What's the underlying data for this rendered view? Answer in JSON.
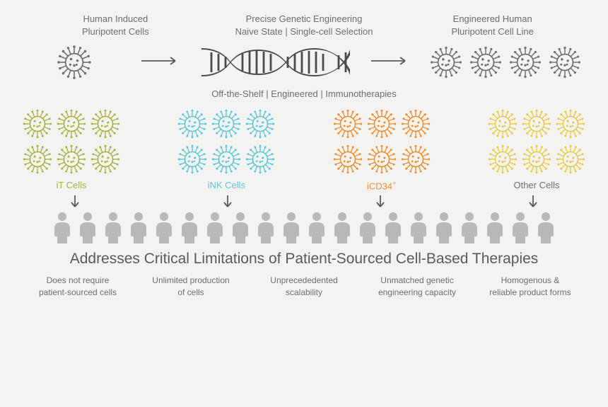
{
  "colors": {
    "text": "#6e6e6e",
    "bg": "#f3f3f2",
    "gray_icon": "#6e6e6e",
    "dna_dark": "#4a4a4a",
    "people": "#b8b8b8",
    "arrow": "#5a5a5a",
    "olive": "#a8b23a",
    "cyan": "#5cc5d8",
    "orange": "#f28c2e",
    "yellow": "#e8c843"
  },
  "top": {
    "left": {
      "line1": "Human Induced",
      "line2": "Pluripotent Cells"
    },
    "mid": {
      "line1": "Precise Genetic Engineering",
      "line2": "Naive State  |  Single-cell Selection"
    },
    "right": {
      "line1": "Engineered Human",
      "line2": "Pluripotent Cell Line"
    }
  },
  "tagline": "Off-the-Shelf  |  Engineered  |  Immunotherapies",
  "cell_types": [
    {
      "label": "iT Cells",
      "color": "#a8b23a"
    },
    {
      "label": "iNK Cells",
      "color": "#5cc5d8"
    },
    {
      "label": "iCD34",
      "sup": "+",
      "color": "#f28c2e"
    },
    {
      "label": "Other Cells",
      "color": "#e8c843",
      "label_color": "#6e6e6e"
    }
  ],
  "people_count": 20,
  "headline": "Addresses Critical Limitations of Patient-Sourced Cell-Based Therapies",
  "benefits": [
    {
      "line1": "Does not require",
      "line2": "patient-sourced cells"
    },
    {
      "line1": "Unlimited production",
      "line2": "of cells"
    },
    {
      "line1": "Unprecededented",
      "line2": "scalability"
    },
    {
      "line1": "Unmatched genetic",
      "line2": "engineering capacity"
    },
    {
      "line1": "Homogenous &",
      "line2": "reliable product forms"
    }
  ],
  "sizes": {
    "cell_small": 48,
    "cell_tiny": 46,
    "dna_w": 210,
    "dna_h": 52,
    "person_w": 30,
    "person_h": 46,
    "arrow_len": 56
  }
}
